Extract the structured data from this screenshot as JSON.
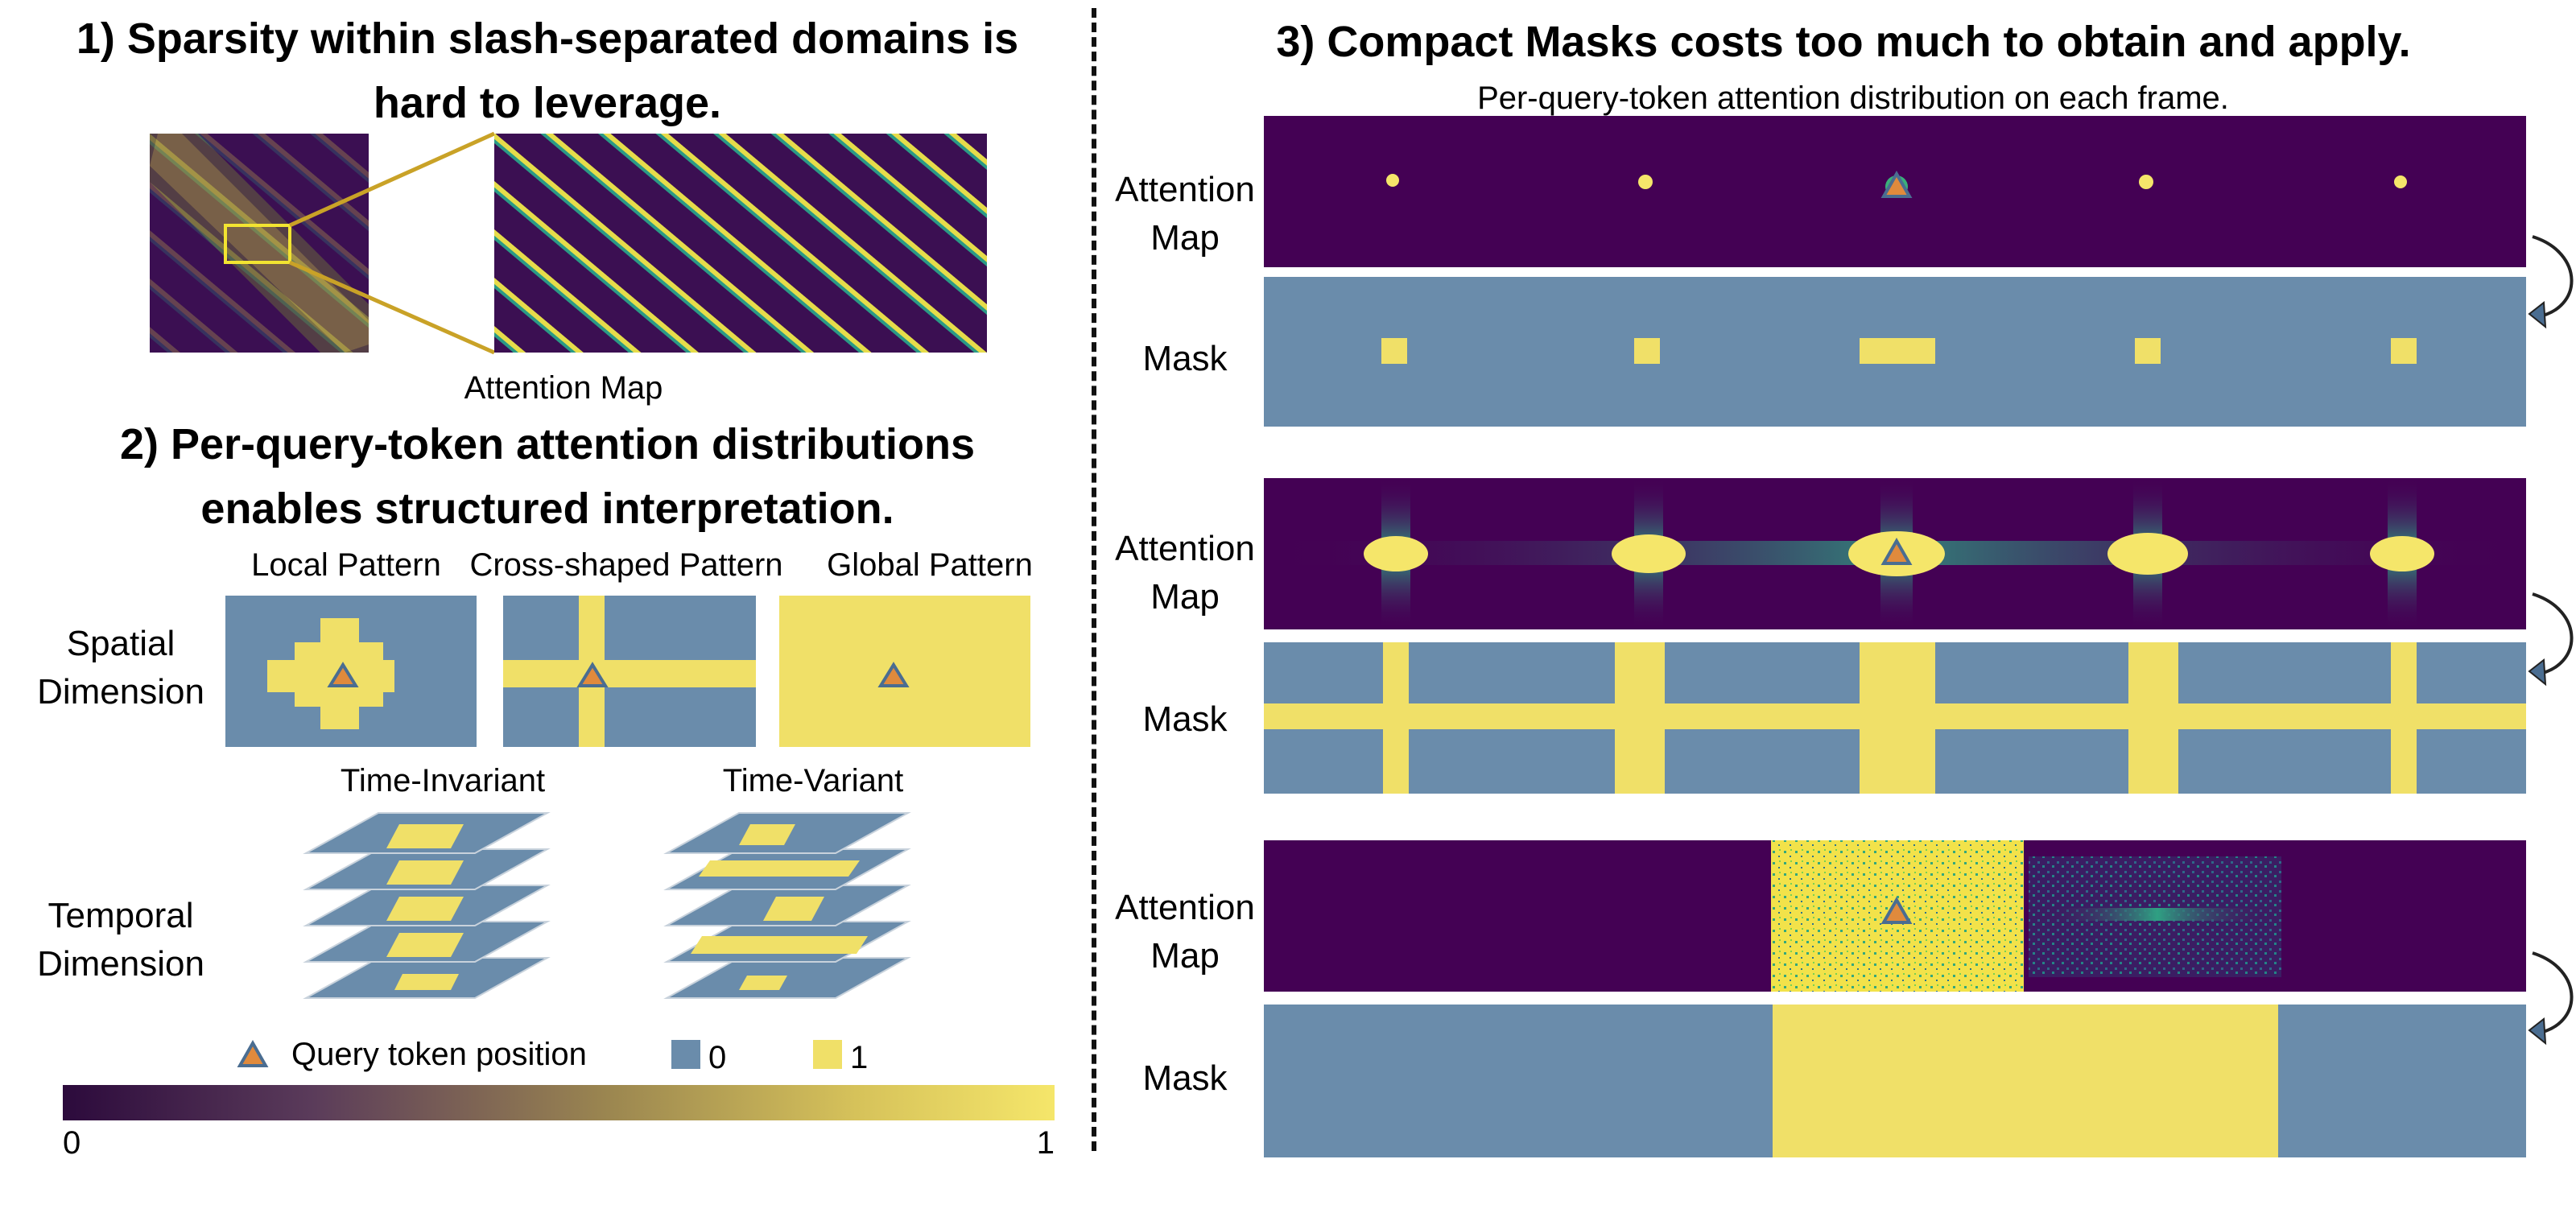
{
  "panel1": {
    "title_line1": "1) Sparsity within slash-separated domains is",
    "title_line2": "hard to leverage.",
    "caption": "Attention Map"
  },
  "panel2": {
    "title_line1": "2) Per-query-token attention distributions",
    "title_line2": "enables structured interpretation.",
    "patterns": [
      "Local Pattern",
      "Cross-shaped Pattern",
      "Global Pattern"
    ],
    "spatial_label": [
      "Spatial",
      "Dimension"
    ],
    "temporal_label": [
      "Temporal",
      "Dimension"
    ],
    "temporal_columns": [
      "Time-Invariant",
      "Time-Variant"
    ],
    "legend": {
      "query": "Query token position",
      "zero": "0",
      "one": "1"
    },
    "colorbar": {
      "min": "0",
      "max": "1"
    }
  },
  "panel3": {
    "title": "3) Compact Masks costs too much to obtain and apply.",
    "subtitle": "Per-query-token attention distribution on each frame.",
    "row_label_map": [
      "Attention",
      "Map"
    ],
    "row_label_mask": "Mask"
  },
  "colors": {
    "dark": "#440154",
    "yellow": "#f0e068",
    "mask_blue": "#6a8cab",
    "triangle_fill": "#e08a3c",
    "triangle_stroke": "#4a6d91",
    "zoom_line": "#c9a227"
  }
}
